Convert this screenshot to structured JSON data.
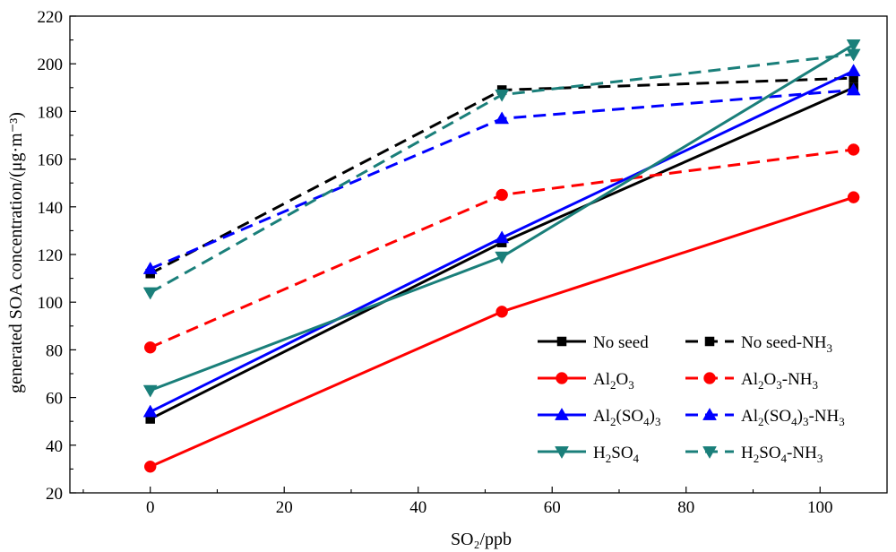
{
  "chart_data": {
    "type": "line",
    "title": "",
    "xlabel": "SO₂/ppb",
    "ylabel": "generated SOA concentration/(μg·m⁻³)",
    "xlim": [
      -12,
      110
    ],
    "ylim": [
      20,
      220
    ],
    "xticks": [
      0,
      20,
      40,
      60,
      80,
      100
    ],
    "yticks": [
      20,
      40,
      60,
      80,
      100,
      120,
      140,
      160,
      180,
      200,
      220
    ],
    "x": [
      0,
      52.5,
      105
    ],
    "legend_position": "bottom-right",
    "series": [
      {
        "name": "No seed",
        "color": "#000000",
        "marker": "square",
        "dashed": false,
        "values": [
          51,
          125,
          190
        ]
      },
      {
        "name": "No seed-NH₃",
        "color": "#000000",
        "marker": "square",
        "dashed": true,
        "values": [
          112,
          189,
          194
        ]
      },
      {
        "name": "Al₂O₃",
        "color": "#ff0000",
        "marker": "circle",
        "dashed": false,
        "values": [
          31,
          96,
          144
        ]
      },
      {
        "name": "Al₂O₃-NH₃",
        "color": "#ff0000",
        "marker": "circle",
        "dashed": true,
        "values": [
          81,
          145,
          164
        ]
      },
      {
        "name": "Al₂(SO₄)₃",
        "color": "#0000ff",
        "marker": "triangle-up",
        "dashed": false,
        "values": [
          54,
          127,
          197
        ]
      },
      {
        "name": "Al₂(SO₄)₃-NH₃",
        "color": "#0000ff",
        "marker": "triangle-up",
        "dashed": true,
        "values": [
          114,
          177,
          189
        ]
      },
      {
        "name": "H₂SO₄",
        "color": "#1a7f7a",
        "marker": "triangle-down",
        "dashed": false,
        "values": [
          63,
          119,
          208
        ]
      },
      {
        "name": "H₂SO₄-NH₃",
        "color": "#1a7f7a",
        "marker": "triangle-down",
        "dashed": true,
        "values": [
          104,
          187,
          204
        ]
      }
    ]
  }
}
